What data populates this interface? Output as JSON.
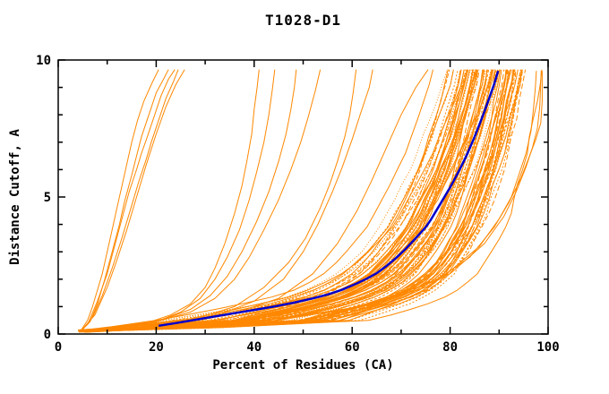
{
  "chart_data": {
    "type": "line",
    "title": "T1028-D1",
    "xlabel": "Percent of Residues (CA)",
    "ylabel": "Distance Cutoff, A",
    "xlim": [
      0,
      100
    ],
    "ylim": [
      0,
      10
    ],
    "grid": false,
    "legend": "none",
    "x_major_ticks": [
      0,
      20,
      40,
      60,
      80,
      100
    ],
    "x_tick_labels": [
      "0",
      "20",
      "40",
      "60",
      "80",
      "100"
    ],
    "x_minor_tick_step": 10,
    "y_major_ticks": [
      0,
      5,
      10
    ],
    "y_tick_labels": [
      "0",
      "5",
      "10"
    ],
    "y_minor_tick_step": 1,
    "colors": {
      "background": "#ffffff",
      "frame": "#000000",
      "text": "#000000",
      "models": "#ff8800",
      "highlight": "#0000cc"
    },
    "highlighted_series": {
      "name": "highlighted-model",
      "points": [
        [
          20.5,
          0.3
        ],
        [
          24,
          0.4
        ],
        [
          28,
          0.52
        ],
        [
          32,
          0.64
        ],
        [
          36,
          0.76
        ],
        [
          40,
          0.88
        ],
        [
          44,
          1.0
        ],
        [
          48,
          1.14
        ],
        [
          52,
          1.3
        ],
        [
          55,
          1.44
        ],
        [
          58,
          1.62
        ],
        [
          61,
          1.85
        ],
        [
          63,
          2.02
        ],
        [
          65,
          2.22
        ],
        [
          67,
          2.48
        ],
        [
          69,
          2.78
        ],
        [
          71,
          3.12
        ],
        [
          73,
          3.5
        ],
        [
          75,
          3.9
        ],
        [
          76,
          4.15
        ],
        [
          77,
          4.45
        ],
        [
          78,
          4.75
        ],
        [
          79,
          5.05
        ],
        [
          80,
          5.35
        ],
        [
          81,
          5.68
        ],
        [
          82,
          6.02
        ],
        [
          83,
          6.38
        ],
        [
          84,
          6.78
        ],
        [
          85,
          7.2
        ],
        [
          86,
          7.65
        ],
        [
          87,
          8.12
        ],
        [
          88,
          8.62
        ],
        [
          89,
          9.12
        ],
        [
          89.8,
          9.6
        ]
      ]
    },
    "model_curves": {
      "name": "model-ensemble",
      "outliers": [
        [
          [
            4.6,
            0.12
          ],
          [
            6,
            0.5
          ],
          [
            7,
            1.0
          ],
          [
            8,
            1.6
          ],
          [
            9,
            2.2
          ],
          [
            10,
            3.0
          ],
          [
            11,
            3.8
          ],
          [
            12,
            4.6
          ],
          [
            13,
            5.4
          ],
          [
            14,
            6.2
          ],
          [
            15,
            7.0
          ],
          [
            16.2,
            7.8
          ],
          [
            17.5,
            8.5
          ],
          [
            19,
            9.1
          ],
          [
            20.5,
            9.65
          ]
        ],
        [
          [
            4.6,
            0.1
          ],
          [
            6.5,
            0.45
          ],
          [
            8,
            1.1
          ],
          [
            9.5,
            2.0
          ],
          [
            11,
            3.0
          ],
          [
            12.5,
            4.0
          ],
          [
            13.5,
            4.8
          ],
          [
            15,
            5.8
          ],
          [
            16,
            6.5
          ],
          [
            17,
            7.2
          ],
          [
            18.5,
            8.0
          ],
          [
            20,
            8.8
          ],
          [
            21.5,
            9.3
          ],
          [
            22.5,
            9.65
          ]
        ],
        [
          [
            4.6,
            0.1
          ],
          [
            7,
            0.6
          ],
          [
            9,
            1.4
          ],
          [
            11,
            2.4
          ],
          [
            13,
            3.5
          ],
          [
            15,
            4.7
          ],
          [
            16.5,
            5.6
          ],
          [
            18,
            6.4
          ],
          [
            19,
            7.0
          ],
          [
            20.5,
            7.8
          ],
          [
            22,
            8.6
          ],
          [
            23.5,
            9.2
          ],
          [
            24.5,
            9.65
          ]
        ],
        [
          [
            4.6,
            0.1
          ],
          [
            7.5,
            0.7
          ],
          [
            10,
            1.7
          ],
          [
            12,
            2.7
          ],
          [
            14,
            3.8
          ],
          [
            16,
            5.0
          ],
          [
            18,
            6.2
          ],
          [
            20,
            7.3
          ],
          [
            22,
            8.3
          ],
          [
            24,
            9.1
          ],
          [
            25.8,
            9.65
          ]
        ],
        [
          [
            4.6,
            0.12
          ],
          [
            6,
            0.35
          ],
          [
            8,
            1.2
          ],
          [
            10,
            2.2
          ],
          [
            11.5,
            3.2
          ],
          [
            13,
            4.2
          ],
          [
            14.5,
            5.2
          ],
          [
            16,
            6.0
          ],
          [
            17,
            6.6
          ],
          [
            18,
            7.1
          ],
          [
            19.5,
            7.9
          ],
          [
            21,
            8.7
          ],
          [
            22.5,
            9.3
          ],
          [
            23.8,
            9.65
          ]
        ],
        [
          [
            4.6,
            0.1
          ],
          [
            18,
            0.4
          ],
          [
            23,
            0.7
          ],
          [
            27,
            1.1
          ],
          [
            30,
            1.7
          ],
          [
            32,
            2.4
          ],
          [
            34,
            3.3
          ],
          [
            36,
            4.4
          ],
          [
            37.5,
            5.4
          ],
          [
            38.5,
            6.3
          ],
          [
            39.5,
            7.3
          ],
          [
            40,
            8.2
          ],
          [
            40.6,
            9.0
          ],
          [
            41,
            9.65
          ]
        ],
        [
          [
            4.6,
            0.1
          ],
          [
            20,
            0.45
          ],
          [
            25,
            0.8
          ],
          [
            29,
            1.3
          ],
          [
            32,
            2.0
          ],
          [
            34.5,
            2.8
          ],
          [
            37,
            3.8
          ],
          [
            39,
            4.9
          ],
          [
            40.5,
            5.9
          ],
          [
            42,
            7.0
          ],
          [
            43,
            8.0
          ],
          [
            43.7,
            8.9
          ],
          [
            44.2,
            9.65
          ]
        ],
        [
          [
            4.6,
            0.1
          ],
          [
            21,
            0.5
          ],
          [
            27,
            0.9
          ],
          [
            31,
            1.4
          ],
          [
            34.5,
            2.1
          ],
          [
            37.5,
            3.0
          ],
          [
            40.5,
            4.1
          ],
          [
            43,
            5.2
          ],
          [
            45,
            6.3
          ],
          [
            46.5,
            7.3
          ],
          [
            47.5,
            8.2
          ],
          [
            48.2,
            9.0
          ],
          [
            48.6,
            9.65
          ]
        ],
        [
          [
            4.6,
            0.1
          ],
          [
            20,
            0.45
          ],
          [
            27,
            0.8
          ],
          [
            32,
            1.3
          ],
          [
            36,
            2.0
          ],
          [
            39,
            2.8
          ],
          [
            42,
            3.8
          ],
          [
            45,
            4.9
          ],
          [
            47.5,
            6.0
          ],
          [
            49.5,
            7.0
          ],
          [
            51,
            7.9
          ],
          [
            52.5,
            8.9
          ],
          [
            53.5,
            9.65
          ]
        ],
        [
          [
            4.6,
            0.1
          ],
          [
            28,
            0.55
          ],
          [
            36,
            1.0
          ],
          [
            42,
            1.7
          ],
          [
            47,
            2.6
          ],
          [
            50.5,
            3.5
          ],
          [
            53.5,
            4.6
          ],
          [
            55.5,
            5.5
          ],
          [
            57,
            6.3
          ],
          [
            58.5,
            7.2
          ],
          [
            59.5,
            8.0
          ],
          [
            60.2,
            8.8
          ],
          [
            60.8,
            9.65
          ]
        ],
        [
          [
            4.6,
            0.1
          ],
          [
            32,
            0.65
          ],
          [
            40,
            1.2
          ],
          [
            46,
            2.0
          ],
          [
            50,
            3.0
          ],
          [
            53,
            4.0
          ],
          [
            56,
            5.2
          ],
          [
            58,
            6.1
          ],
          [
            60,
            7.1
          ],
          [
            62,
            8.2
          ],
          [
            63.5,
            9.0
          ],
          [
            64.2,
            9.65
          ]
        ],
        [
          [
            4.6,
            0.1
          ],
          [
            35,
            0.7
          ],
          [
            45,
            1.3
          ],
          [
            52,
            2.2
          ],
          [
            57,
            3.3
          ],
          [
            61,
            4.5
          ],
          [
            64,
            5.6
          ],
          [
            67,
            6.8
          ],
          [
            70,
            8.0
          ],
          [
            73,
            9.0
          ],
          [
            75.5,
            9.65
          ]
        ],
        [
          [
            5,
            0.1
          ],
          [
            40,
            0.45
          ],
          [
            60,
            0.9
          ],
          [
            75,
            1.7
          ],
          [
            84,
            2.8
          ],
          [
            89,
            3.9
          ],
          [
            92,
            4.8
          ],
          [
            94.5,
            5.7
          ],
          [
            96,
            6.4
          ],
          [
            97.5,
            7.1
          ],
          [
            98.5,
            7.7
          ],
          [
            98.8,
            8.5
          ],
          [
            98.8,
            9.6
          ]
        ],
        [
          [
            5,
            0.1
          ],
          [
            45,
            0.5
          ],
          [
            65,
            1.1
          ],
          [
            80,
            2.2
          ],
          [
            87,
            3.3
          ],
          [
            91,
            4.3
          ],
          [
            93.5,
            5.2
          ],
          [
            95.5,
            6.1
          ],
          [
            96.8,
            6.8
          ],
          [
            97.8,
            7.5
          ],
          [
            98.3,
            8.3
          ],
          [
            98.5,
            9.2
          ],
          [
            98.6,
            9.6
          ]
        ],
        [
          [
            5,
            0.1
          ],
          [
            42,
            0.5
          ],
          [
            62,
            1.0
          ],
          [
            78,
            2.0
          ],
          [
            86,
            3.2
          ],
          [
            90,
            4.2
          ],
          [
            92.5,
            5.0
          ],
          [
            94,
            5.8
          ],
          [
            95.5,
            6.6
          ],
          [
            96.5,
            7.4
          ],
          [
            97,
            8.2
          ],
          [
            97.4,
            9.0
          ],
          [
            97.6,
            9.6
          ]
        ]
      ],
      "bundle": {
        "count": 85,
        "seed": 20210607,
        "start_x_range": [
          4.0,
          6.0
        ],
        "start_y_range": [
          0.06,
          0.16
        ],
        "anchor_y": 0.5,
        "anchor_x_range": [
          15,
          68
        ],
        "top_x_base": 75,
        "top_x_slope": 0.36,
        "top_x_jitter": 6,
        "top_x_max": 97.5,
        "shape_exponent_range": [
          0.88,
          1.12
        ],
        "wiggle": 0.7,
        "sample_ys": [
          0.7,
          0.9,
          1.1,
          1.35,
          1.6,
          1.9,
          2.2,
          2.6,
          3.0,
          3.45,
          3.9,
          4.4,
          4.9,
          5.45,
          6.0,
          6.6,
          7.2,
          7.85,
          8.5,
          9.1,
          9.65
        ],
        "dash_patterns": [
          "",
          "",
          "3 2",
          "",
          "1.5 1.5",
          "",
          "5 2",
          "",
          "2 2",
          "6 3",
          "",
          "1 2"
        ]
      }
    }
  }
}
